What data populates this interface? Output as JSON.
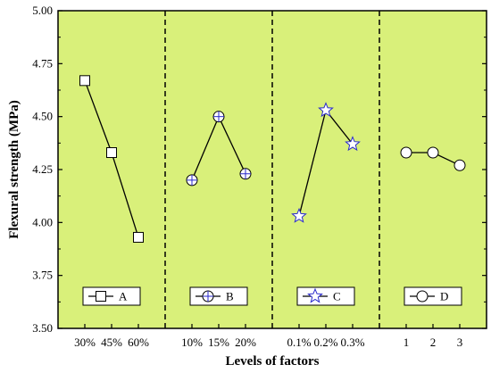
{
  "chart_data": {
    "type": "line",
    "ylabel": "Flexural strength (MPa)",
    "xlabel": "Levels of factors",
    "ylim": [
      3.5,
      5.0
    ],
    "yticks": [
      "3.50",
      "3.75",
      "4.00",
      "4.25",
      "4.50",
      "4.75",
      "5.00"
    ],
    "background": "#d9f07a",
    "grid": false,
    "series": [
      {
        "name": "A",
        "marker": "square",
        "color": "#000000",
        "marker_fill": "#ffffff",
        "categories": [
          "30%",
          "45%",
          "60%"
        ],
        "values": [
          4.67,
          4.33,
          3.93
        ]
      },
      {
        "name": "B",
        "marker": "circle-plus",
        "color": "#000000",
        "marker_fill": "#ffffff",
        "marker_accent": "#2a2acc",
        "categories": [
          "10%",
          "15%",
          "20%"
        ],
        "values": [
          4.2,
          4.5,
          4.23
        ]
      },
      {
        "name": "C",
        "marker": "star",
        "color": "#000000",
        "marker_fill": "#ffffff",
        "marker_accent": "#2a2acc",
        "categories": [
          "0.1%",
          "0.2%",
          "0.3%"
        ],
        "values": [
          4.03,
          4.53,
          4.37
        ]
      },
      {
        "name": "D",
        "marker": "circle",
        "color": "#000000",
        "marker_fill": "#ffffff",
        "categories": [
          "1",
          "2",
          "3"
        ],
        "values": [
          4.33,
          4.33,
          4.27
        ]
      }
    ]
  }
}
